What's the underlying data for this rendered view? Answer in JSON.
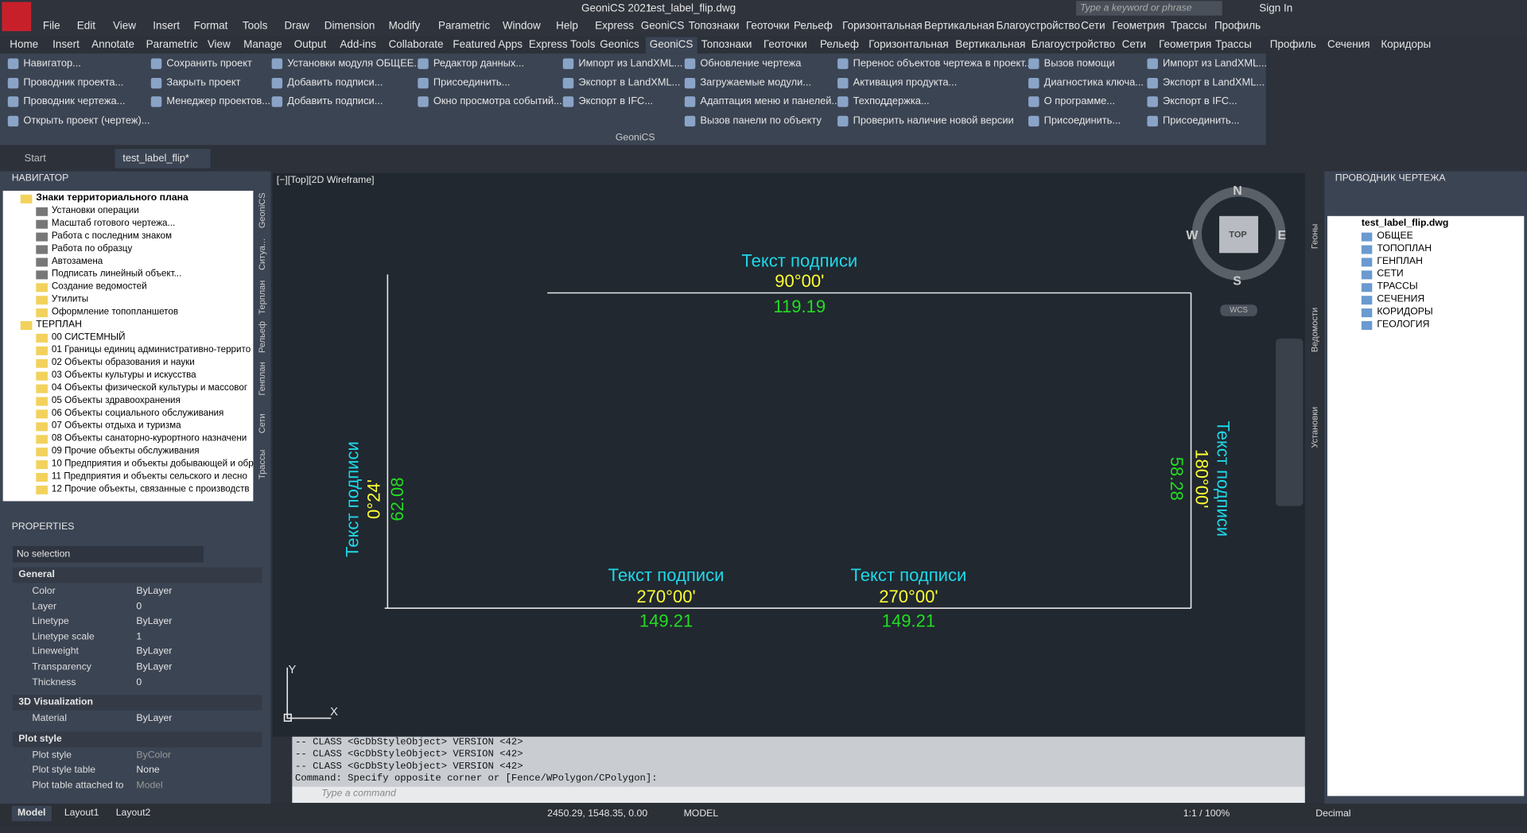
{
  "title_bar": {
    "app": "GeoniCS 2021",
    "file": "test_label_flip.dwg",
    "search": "Type a keyword or phrase",
    "sign_in": "Sign In"
  },
  "menu": [
    "File",
    "Edit",
    "View",
    "Insert",
    "Format",
    "Tools",
    "Draw",
    "Dimension",
    "Modify",
    "Parametric",
    "Window",
    "Help",
    "Express",
    "GeoniCS",
    "Топознаки",
    "Геоточки",
    "Рельеф",
    "Горизонтальная",
    "Вертикальная",
    "Благоустройство",
    "Сети",
    "Геометрия",
    "Трассы",
    "Профиль"
  ],
  "ribbon_tabs": [
    "Home",
    "Insert",
    "Annotate",
    "Parametric",
    "View",
    "Manage",
    "Output",
    "Add-ins",
    "Collaborate",
    "Featured Apps",
    "Express Tools",
    "Geonics",
    "GeoniCS",
    "Топознаки",
    "Геоточки",
    "Рельеф",
    "Горизонтальная",
    "Вертикальная",
    "Благоустройство",
    "Сети",
    "Геометрия",
    "Трассы",
    "Профиль",
    "Сечения",
    "Коридоры"
  ],
  "ribbon_columns": [
    [
      "Навигатор...",
      "Проводник проекта...",
      "Проводник чертежа...",
      "Открыть проект (чертеж)..."
    ],
    [
      "Сохранить проект",
      "Закрыть проект",
      "Менеджер проектов..."
    ],
    [
      "Установки модуля ОБЩЕЕ...",
      "Добавить подписи...",
      "Добавить подписи..."
    ],
    [
      "Редактор данных...",
      "Присоединить...",
      "Окно просмотра событий..."
    ],
    [
      "Импорт из LandXML...",
      "Экспорт в LandXML...",
      "Экспорт в IFC..."
    ],
    [
      "Обновление чертежа",
      "Загружаемые модули...",
      "Адаптация меню и панелей...",
      "Вызов панели по объекту"
    ],
    [
      "Перенос объектов чертежа в проект...",
      "Активация продукта...",
      "Техподдержка...",
      "Проверить наличие новой версии"
    ],
    [
      "Вызов помощи",
      "Диагностика ключа...",
      "О программе...",
      "Присоединить..."
    ],
    [
      "Импорт из LandXML...",
      "Экспорт в LandXML...",
      "Экспорт в IFC...",
      "Присоединить..."
    ]
  ],
  "ribbon_panel": "GeoniCS",
  "doc_tabs": [
    "Start",
    "test_label_flip*"
  ],
  "navigator": {
    "title": "НАВИГАТОР",
    "side_tabs": [
      "GeoniCS",
      "Ситуа...",
      "Терплан",
      "Рельеф",
      "Генплан",
      "Сети",
      "Трассы"
    ],
    "tree": [
      {
        "label": "Знаки территориального плана",
        "children": [
          "Установки операции",
          "Масштаб готового чертежа...",
          "Работа с последним знаком",
          "Работа по образцу",
          "Автозамена",
          "Подписать линейный объект...",
          "Создание ведомостей",
          "Утилиты",
          "Оформление топопланшетов"
        ]
      },
      {
        "label": "ТЕРПЛАН",
        "children": [
          "00 СИСТЕМНЫЙ",
          "01 Границы единиц административно-террито",
          "02 Объекты образования и науки",
          "03 Объекты культуры и искусства",
          "04 Объекты физической культуры и массовог",
          "05 Объекты здравоохранения",
          "06 Объекты социального обслуживания",
          "07 Объекты отдыха и туризма",
          "08 Объекты санаторно-курортного назначени",
          "09 Прочие объекты обслуживания",
          "10 Предприятия и объекты добывающей и обр",
          "11 Предприятия и объекты сельского и лесно",
          "12 Прочие объекты, связанные с производств"
        ]
      }
    ]
  },
  "properties": {
    "title": "PROPERTIES",
    "selection": "No selection",
    "sections": [
      {
        "name": "General",
        "rows": [
          [
            "Color",
            "ByLayer"
          ],
          [
            "Layer",
            "0"
          ],
          [
            "Linetype",
            "ByLayer"
          ],
          [
            "Linetype scale",
            "1"
          ],
          [
            "Lineweight",
            "ByLayer"
          ],
          [
            "Transparency",
            "ByLayer"
          ],
          [
            "Thickness",
            "0"
          ]
        ]
      },
      {
        "name": "3D Visualization",
        "rows": [
          [
            "Material",
            "ByLayer"
          ]
        ]
      },
      {
        "name": "Plot style",
        "rows": [
          [
            "Plot style",
            "ByColor"
          ],
          [
            "Plot style table",
            "None"
          ],
          [
            "Plot table attached to",
            "Model"
          ]
        ]
      }
    ]
  },
  "viewport": {
    "label": "[−][Top][2D Wireframe]",
    "compass": {
      "n": "N",
      "s": "S",
      "e": "E",
      "w": "W",
      "top": "TOP",
      "wcs": "WCS"
    },
    "ucs": {
      "y": "Y",
      "x": "X"
    }
  },
  "labels": [
    {
      "text": "Текст подписи",
      "angle": "90°00'",
      "length": "119.19"
    },
    {
      "text": "Текст подписи",
      "angle": "0°24'",
      "length": "62.08"
    },
    {
      "text": "Текст подписи",
      "angle": "270°00'",
      "length": "149.21"
    },
    {
      "text": "Текст подписи",
      "angle": "270°00'",
      "length": "149.21"
    },
    {
      "text": "Текст подписи",
      "angle": "180°00'",
      "length": "58.28"
    }
  ],
  "command": {
    "history": [
      "-- CLASS <GcDbStyleObject> VERSION <42>",
      "-- CLASS <GcDbStyleObject> VERSION <42>",
      "-- CLASS <GcDbStyleObject> VERSION <42>",
      "Command: Specify opposite corner or [Fence/WPolygon/CPolygon]:"
    ],
    "placeholder": "Type a command"
  },
  "layout_tabs": [
    "Model",
    "Layout1",
    "Layout2"
  ],
  "status": {
    "coords": "2450.29, 1548.35, 0.00",
    "space": "MODEL",
    "scale": "1:1 / 100%",
    "units": "Decimal"
  },
  "drawing_explorer": {
    "title": "ПРОВОДНИК ЧЕРТЕЖА",
    "side_tabs": [
      "Геоны",
      "Ведомости",
      "Установки"
    ],
    "root": "test_label_flip.dwg",
    "items": [
      "ОБЩЕЕ",
      "ТОПОПЛАН",
      "ГЕНПЛАН",
      "СЕТИ",
      "ТРАССЫ",
      "СЕЧЕНИЯ",
      "КОРИДОРЫ",
      "ГЕОЛОГИЯ"
    ]
  }
}
